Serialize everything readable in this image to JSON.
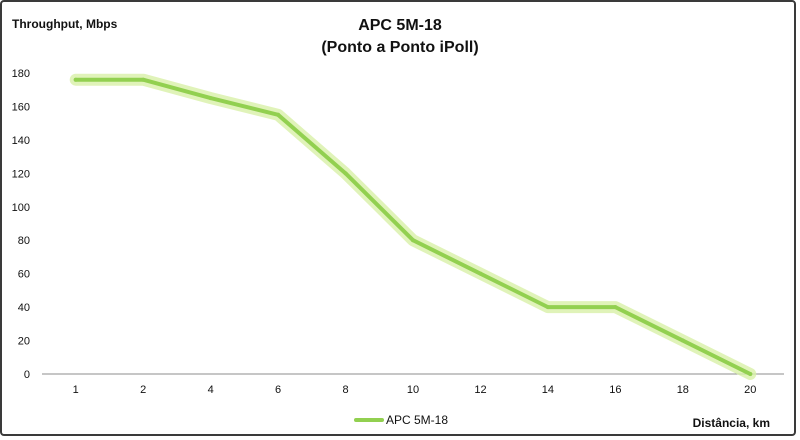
{
  "chart_data": {
    "type": "line",
    "title": "APC 5M-18",
    "subtitle": "(Ponto a Ponto iPoll)",
    "ylabel": "Throughput, Mbps",
    "xlabel": "Distância, km",
    "categories": [
      "1",
      "2",
      "4",
      "6",
      "8",
      "10",
      "12",
      "14",
      "16",
      "18",
      "20"
    ],
    "series": [
      {
        "name": "APC 5M-18",
        "values": [
          176,
          176,
          165,
          155,
          120,
          80,
          60,
          40,
          40,
          20,
          0
        ]
      }
    ],
    "yticks": [
      "0",
      "20",
      "40",
      "60",
      "80",
      "100",
      "120",
      "140",
      "160",
      "180"
    ],
    "ylim": [
      0,
      180
    ],
    "grid": false,
    "legend": "bottom-center",
    "colors": {
      "line": "#92d050",
      "glow": "#d8f0a8"
    }
  }
}
